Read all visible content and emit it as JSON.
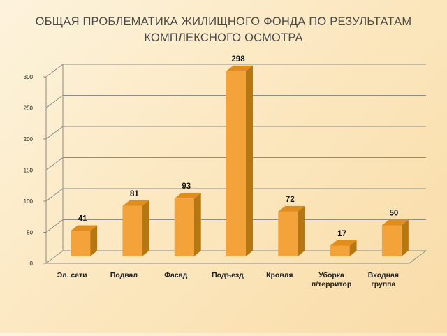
{
  "title": {
    "line1": "ОБЩАЯ ПРОБЛЕМАТИКА ЖИЛИЩНОГО ФОНДА ПО РЕЗУЛЬТАТАМ",
    "line2": "КОМПЛЕКСНОГО ОСМОТРА"
  },
  "chart_data": {
    "type": "bar",
    "categories": [
      [
        "Эл. сети"
      ],
      [
        "Подвал"
      ],
      [
        "Фасад"
      ],
      [
        "Подъезд"
      ],
      [
        "Кровля"
      ],
      [
        "Уборка",
        "п/территор"
      ],
      [
        "Входная",
        "группа"
      ]
    ],
    "values": [
      41,
      81,
      93,
      298,
      72,
      17,
      50
    ],
    "yticks": [
      0,
      50,
      100,
      150,
      200,
      250,
      300
    ],
    "ylim": [
      0,
      300
    ],
    "grid": true,
    "legend": "none",
    "colors": {
      "bar_front": "#f4a33a",
      "bar_side": "#b57712",
      "bar_top": "#e08d1e",
      "grid": "#8c8c8c",
      "label": "#111111"
    }
  }
}
